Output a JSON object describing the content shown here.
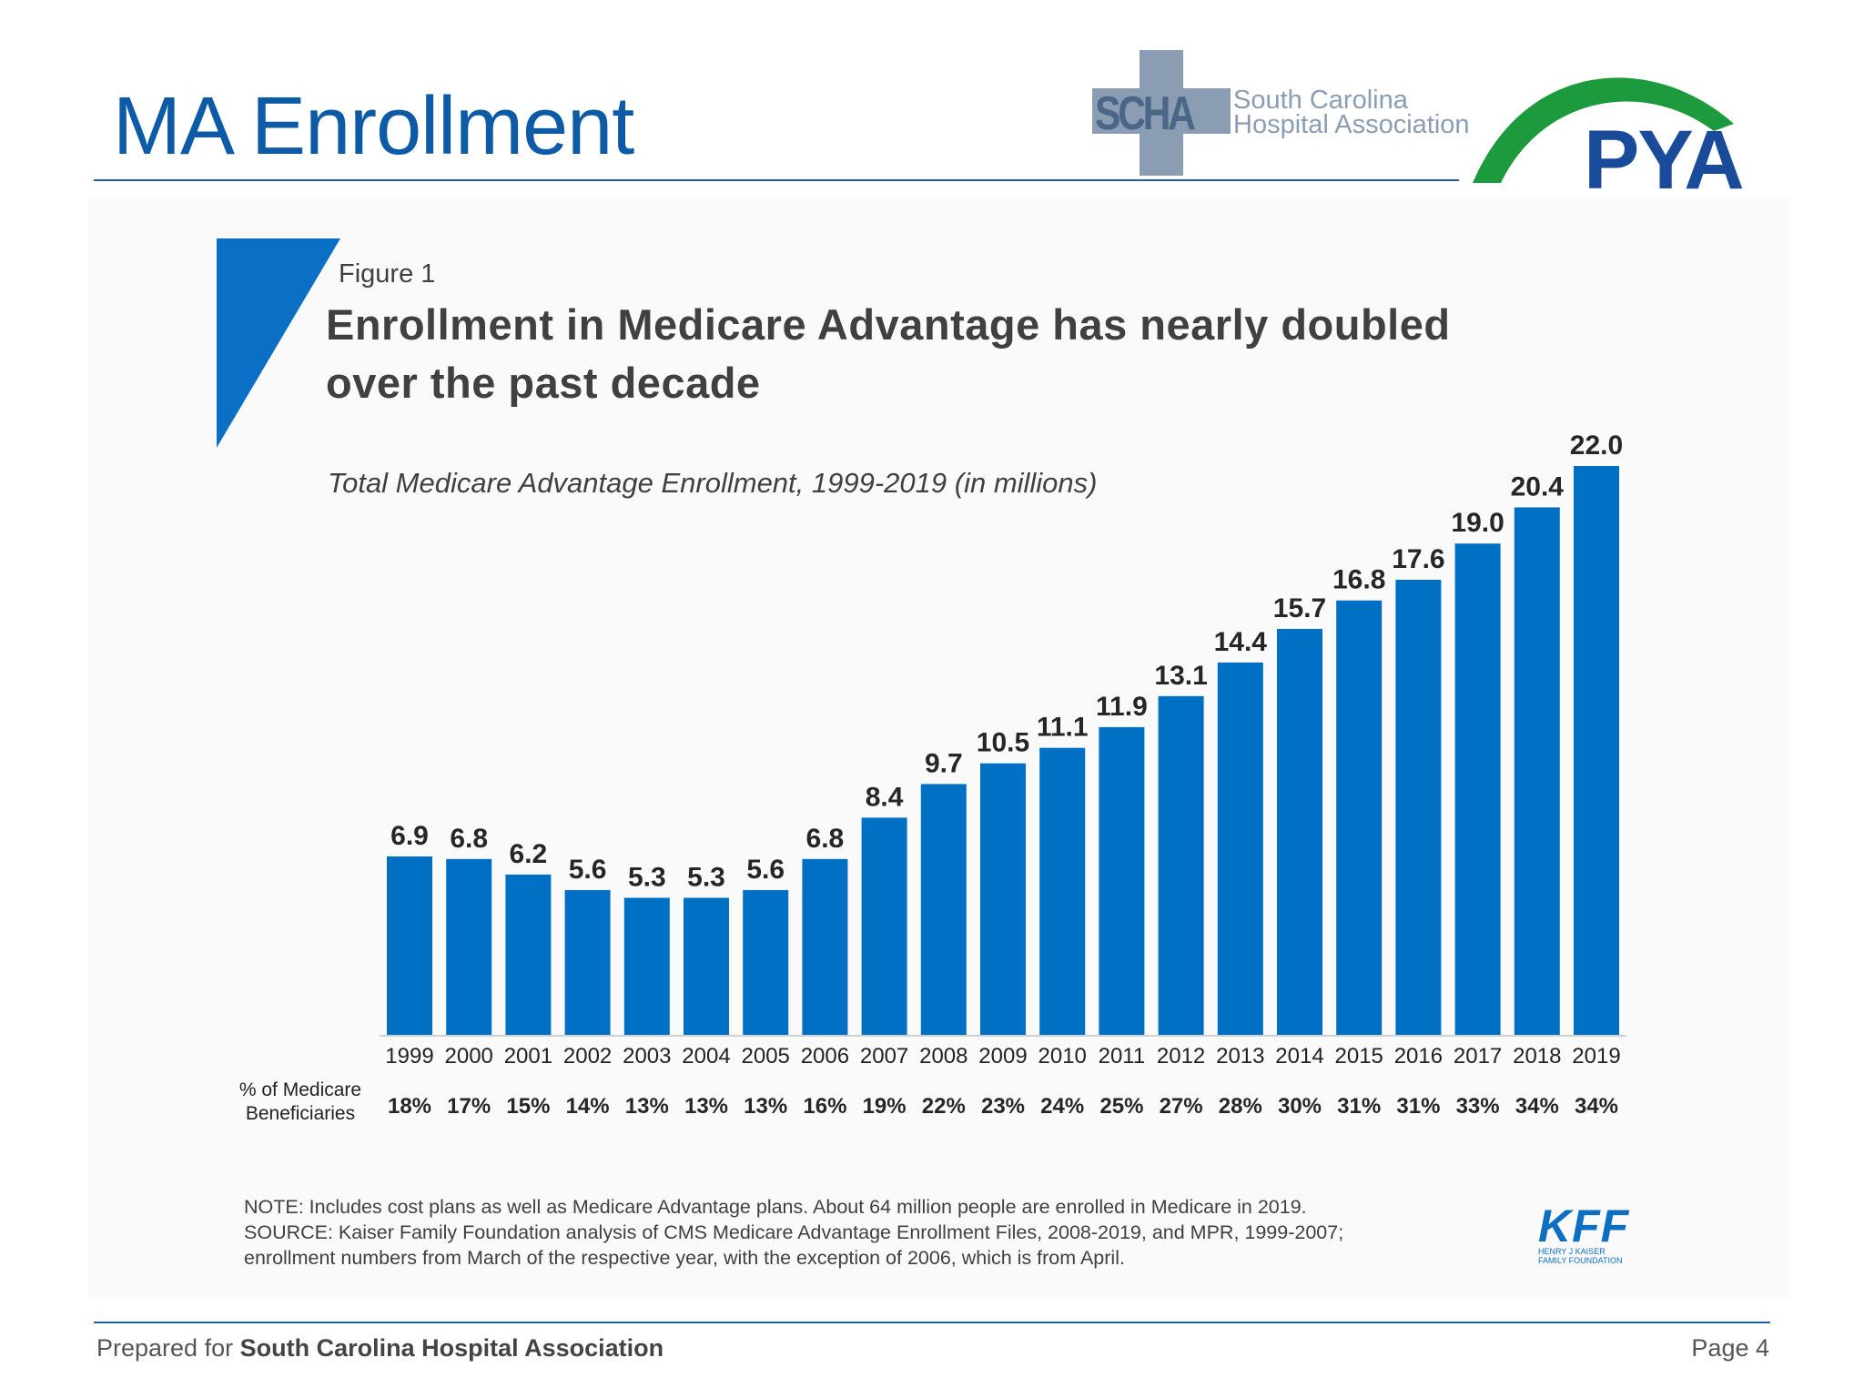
{
  "slide": {
    "title": "MA Enrollment",
    "footer_prefix": "Prepared for ",
    "footer_org": "South Carolina Hospital Association",
    "page": "Page 4"
  },
  "logos": {
    "schca_abbr": "SCHA",
    "schca_name_line1": "South Carolina",
    "schca_name_line2": "Hospital Association",
    "pya": "PYA",
    "kff_abbr": "KFF",
    "kff_name_line1": "HENRY J KAISER",
    "kff_name_line2": "FAMILY FOUNDATION"
  },
  "figure": {
    "label": "Figure 1",
    "title_line1": "Enrollment in Medicare Advantage has nearly doubled",
    "title_line2": "over the past decade",
    "subtitle": "Total Medicare Advantage Enrollment, 1999-2019 (in millions)",
    "pct_label_line1": "% of Medicare",
    "pct_label_line2": "Beneficiaries",
    "note_line1": "NOTE: Includes cost plans as well as Medicare Advantage plans. About 64 million people are enrolled in Medicare in 2019.",
    "note_line2": "SOURCE: Kaiser Family Foundation analysis of CMS Medicare Advantage Enrollment Files, 2008-2019, and MPR, 1999-2007;",
    "note_line3": "enrollment numbers from March of the respective year, with the exception of 2006, which is from April."
  },
  "colors": {
    "title_blue": "#0d5aa7",
    "bar_blue": "#0070c4",
    "accent_blue": "#0b6fc5",
    "text_gray": "#404040"
  },
  "chart_data": {
    "type": "bar",
    "title": "Enrollment in Medicare Advantage has nearly doubled over the past decade",
    "subtitle": "Total Medicare Advantage Enrollment, 1999-2019 (in millions)",
    "categories": [
      "1999",
      "2000",
      "2001",
      "2002",
      "2003",
      "2004",
      "2005",
      "2006",
      "2007",
      "2008",
      "2009",
      "2010",
      "2011",
      "2012",
      "2013",
      "2014",
      "2015",
      "2016",
      "2017",
      "2018",
      "2019"
    ],
    "values": [
      6.9,
      6.8,
      6.2,
      5.6,
      5.3,
      5.3,
      5.6,
      6.8,
      8.4,
      9.7,
      10.5,
      11.1,
      11.9,
      13.1,
      14.4,
      15.7,
      16.8,
      17.6,
      19.0,
      20.4,
      22.0
    ],
    "value_labels": [
      "6.9",
      "6.8",
      "6.2",
      "5.6",
      "5.3",
      "5.3",
      "5.6",
      "6.8",
      "8.4",
      "9.7",
      "10.5",
      "11.1",
      "11.9",
      "13.1",
      "14.4",
      "15.7",
      "16.8",
      "17.6",
      "19.0",
      "20.4",
      "22.0"
    ],
    "pct_of_beneficiaries": [
      "18%",
      "17%",
      "15%",
      "14%",
      "13%",
      "13%",
      "13%",
      "16%",
      "19%",
      "22%",
      "23%",
      "24%",
      "25%",
      "27%",
      "28%",
      "30%",
      "31%",
      "31%",
      "33%",
      "34%",
      "34%"
    ],
    "ylim": [
      0,
      22
    ],
    "grid": false,
    "legend": "none",
    "bar_color": "#0070c4"
  }
}
